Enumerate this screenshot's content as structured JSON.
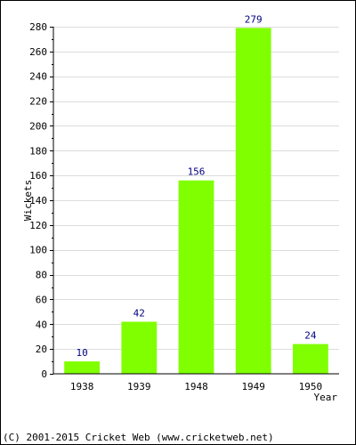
{
  "chart_data": {
    "type": "bar",
    "categories": [
      "1938",
      "1939",
      "1948",
      "1949",
      "1950"
    ],
    "values": [
      10,
      42,
      156,
      279,
      24
    ],
    "data_labels": [
      "10",
      "42",
      "156",
      "279",
      "24"
    ],
    "ylabel": "Wickets",
    "xlabel": "Year",
    "ylim": [
      0,
      280
    ],
    "yticks": [
      0,
      20,
      40,
      60,
      80,
      100,
      120,
      140,
      160,
      180,
      200,
      220,
      240,
      260,
      280
    ],
    "ytick_labels": [
      "0",
      "20",
      "40",
      "60",
      "80",
      "100",
      "120",
      "140",
      "160",
      "180",
      "200",
      "220",
      "240",
      "260",
      "280"
    ],
    "grid": true,
    "bar_color": "#80ff00",
    "label_color": "#000080"
  },
  "footer": {
    "copyright": "(C) 2001-2015 Cricket Web (www.cricketweb.net)"
  }
}
